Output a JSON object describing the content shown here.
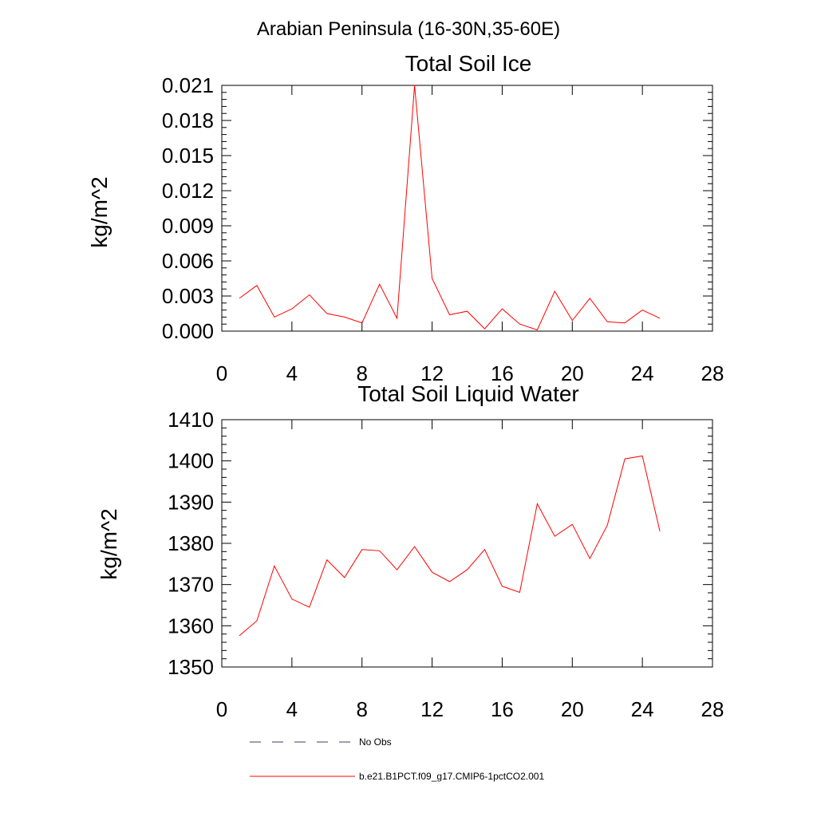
{
  "figure_title": "Arabian Peninsula (16-30N,35-60E)",
  "chart_data": [
    {
      "type": "line",
      "title": "Total Soil Ice",
      "xlabel": "",
      "ylabel": "kg/m^2",
      "xlim": [
        0,
        28
      ],
      "ylim": [
        0.0,
        0.021
      ],
      "xticks": [
        "0",
        "4",
        "8",
        "12",
        "16",
        "20",
        "24",
        "28"
      ],
      "yticks": [
        "0.000",
        "0.003",
        "0.006",
        "0.009",
        "0.012",
        "0.015",
        "0.018",
        "0.021"
      ],
      "x": [
        1,
        2,
        3,
        4,
        5,
        6,
        7,
        8,
        9,
        10,
        11,
        12,
        13,
        14,
        15,
        16,
        17,
        18,
        19,
        20,
        21,
        22,
        23,
        24,
        25
      ],
      "series": [
        {
          "color": "#ff0000",
          "values": [
            0.0028,
            0.0039,
            0.0012,
            0.0019,
            0.0031,
            0.0015,
            0.0012,
            0.0007,
            0.004,
            0.0011,
            0.021,
            0.0045,
            0.0014,
            0.0017,
            0.0002,
            0.0019,
            0.0006,
            0.0001,
            0.0034,
            0.0009,
            0.0028,
            0.0008,
            0.0007,
            0.0018,
            0.0011
          ]
        }
      ]
    },
    {
      "type": "line",
      "title": "Total Soil Liquid Water",
      "xlabel": "",
      "ylabel": "kg/m^2",
      "xlim": [
        0,
        28
      ],
      "ylim": [
        1350,
        1410
      ],
      "xticks": [
        "0",
        "4",
        "8",
        "12",
        "16",
        "20",
        "24",
        "28"
      ],
      "yticks": [
        "1350",
        "1360",
        "1370",
        "1380",
        "1390",
        "1400",
        "1410"
      ],
      "x": [
        1,
        2,
        3,
        4,
        5,
        6,
        7,
        8,
        9,
        10,
        11,
        12,
        13,
        14,
        15,
        16,
        17,
        18,
        19,
        20,
        21,
        22,
        23,
        24,
        25
      ],
      "series": [
        {
          "color": "#ff0000",
          "values": [
            1357.6,
            1361.2,
            1374.5,
            1366.5,
            1364.5,
            1376.0,
            1371.7,
            1378.5,
            1378.2,
            1373.6,
            1379.2,
            1373.0,
            1370.7,
            1373.6,
            1378.5,
            1369.6,
            1368.1,
            1389.6,
            1381.7,
            1384.6,
            1376.3,
            1384.4,
            1400.5,
            1401.2,
            1382.9
          ]
        }
      ]
    }
  ],
  "legend": [
    {
      "label": "No Obs",
      "style": "dashed",
      "color": "#3c3c6e"
    },
    {
      "label": "b.e21.B1PCT.f09_g17.CMIP6-1pctCO2.001",
      "style": "solid",
      "color": "#ff0000"
    }
  ]
}
